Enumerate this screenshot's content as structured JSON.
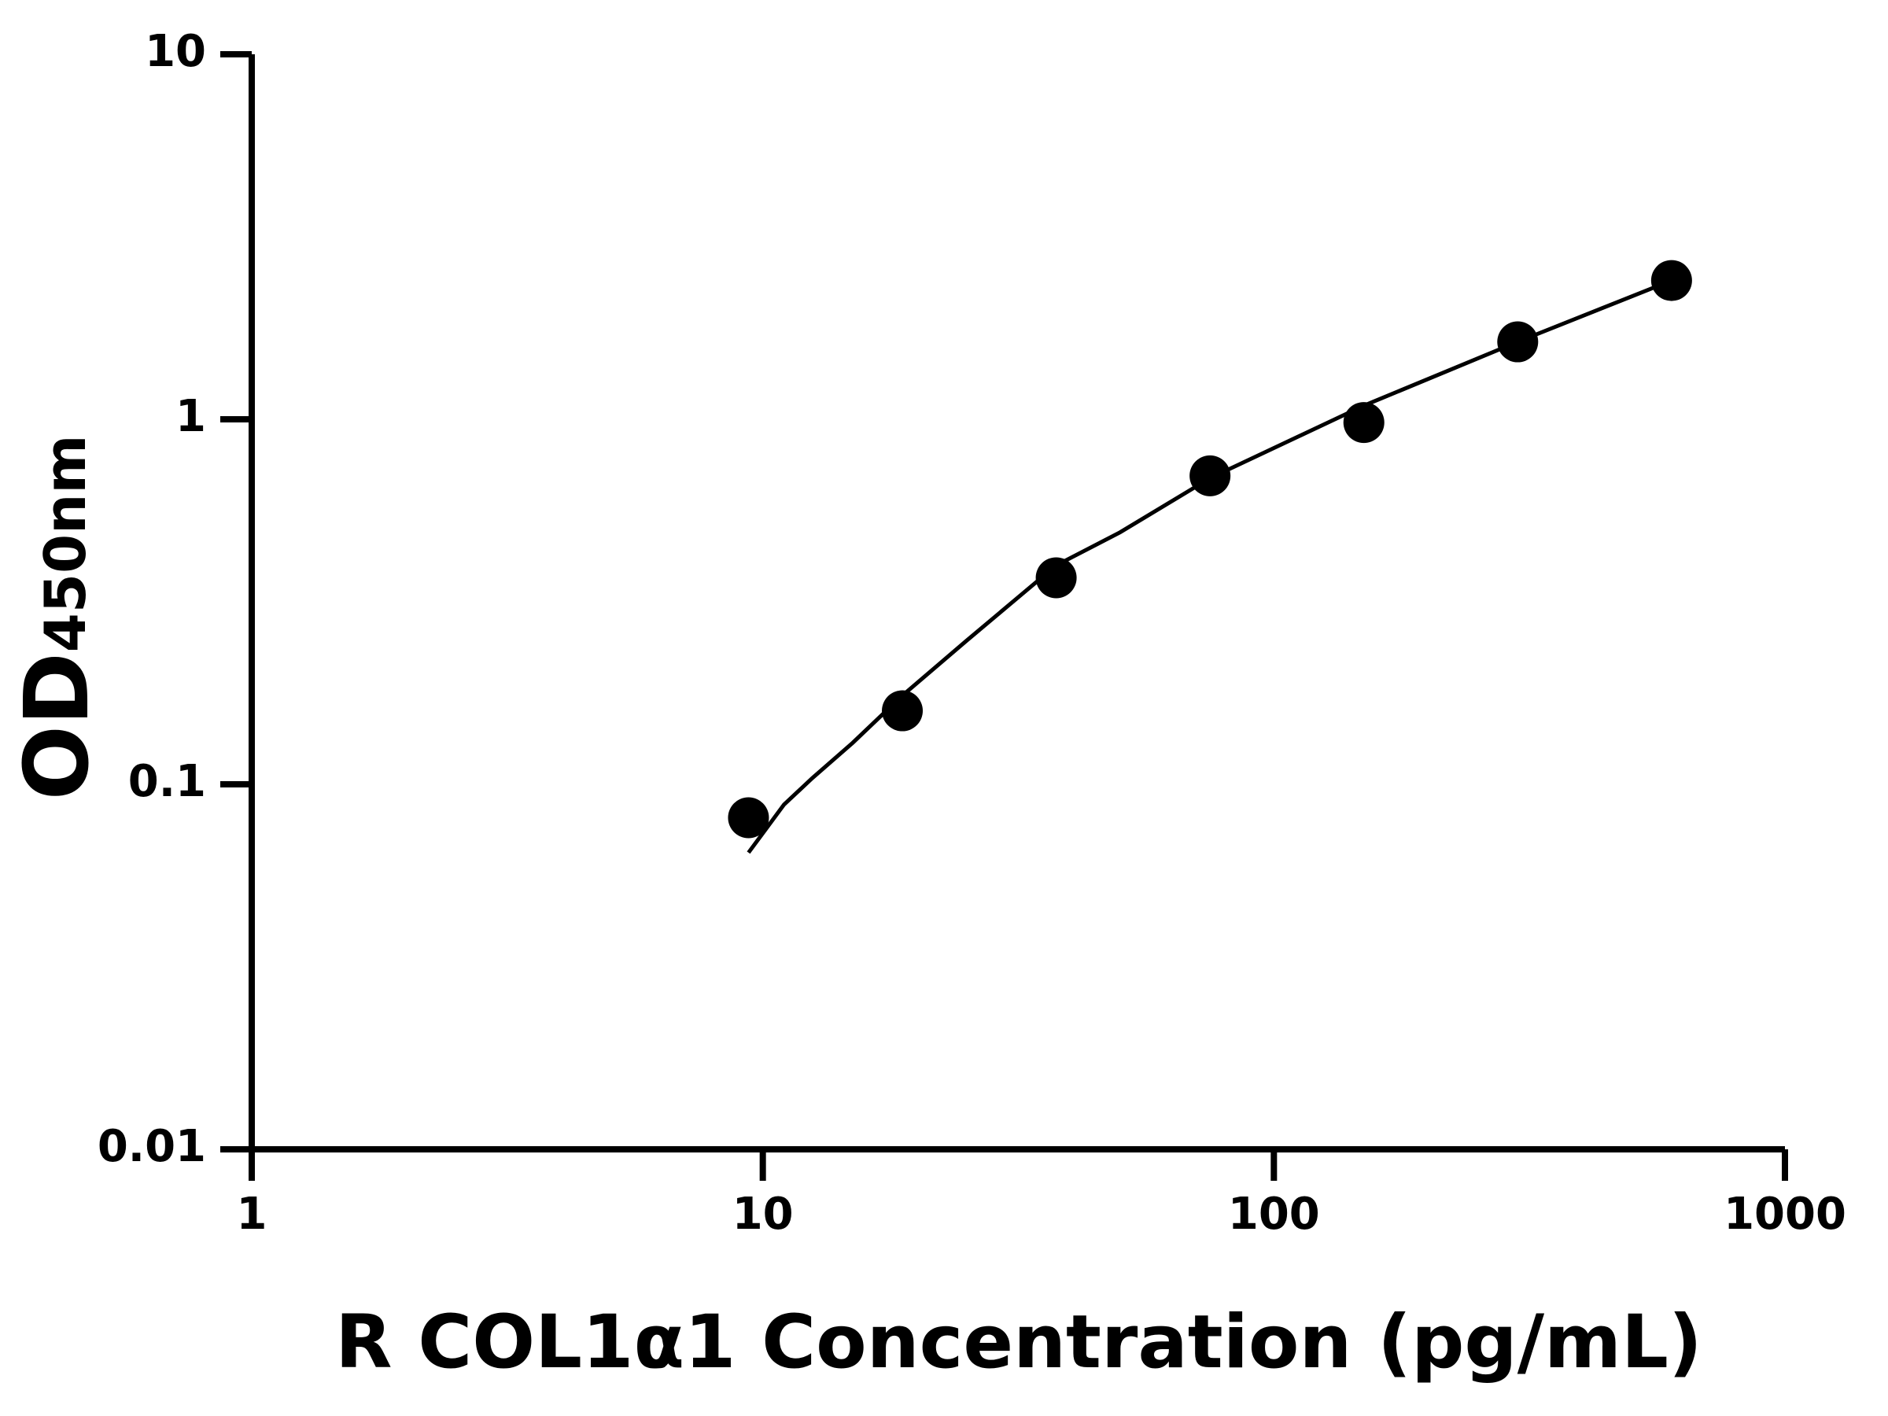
{
  "chart_data": {
    "type": "scatter",
    "x_label": "R COL1α1 Concentration (pg/mL)",
    "y_label": "OD",
    "y_label_sub": "450nm",
    "x": [
      9.375,
      18.75,
      37.5,
      75,
      150,
      300,
      600
    ],
    "values": [
      0.081,
      0.159,
      0.368,
      0.7,
      0.98,
      1.63,
      2.4
    ],
    "color": "#000000",
    "fit": {
      "x": [
        9.375,
        11,
        12.5,
        15,
        18.75,
        25,
        37.5,
        50,
        75,
        150,
        300,
        600
      ],
      "values": [
        0.065,
        0.088,
        0.104,
        0.13,
        0.175,
        0.247,
        0.398,
        0.49,
        0.69,
        1.09,
        1.63,
        2.4
      ]
    },
    "xscale": "log",
    "yscale": "log",
    "xlim": [
      1,
      1000
    ],
    "ylim": [
      0.01,
      10
    ],
    "xticks": [
      1,
      10,
      100,
      1000
    ],
    "yticks": [
      0.01,
      0.1,
      1,
      10
    ]
  }
}
